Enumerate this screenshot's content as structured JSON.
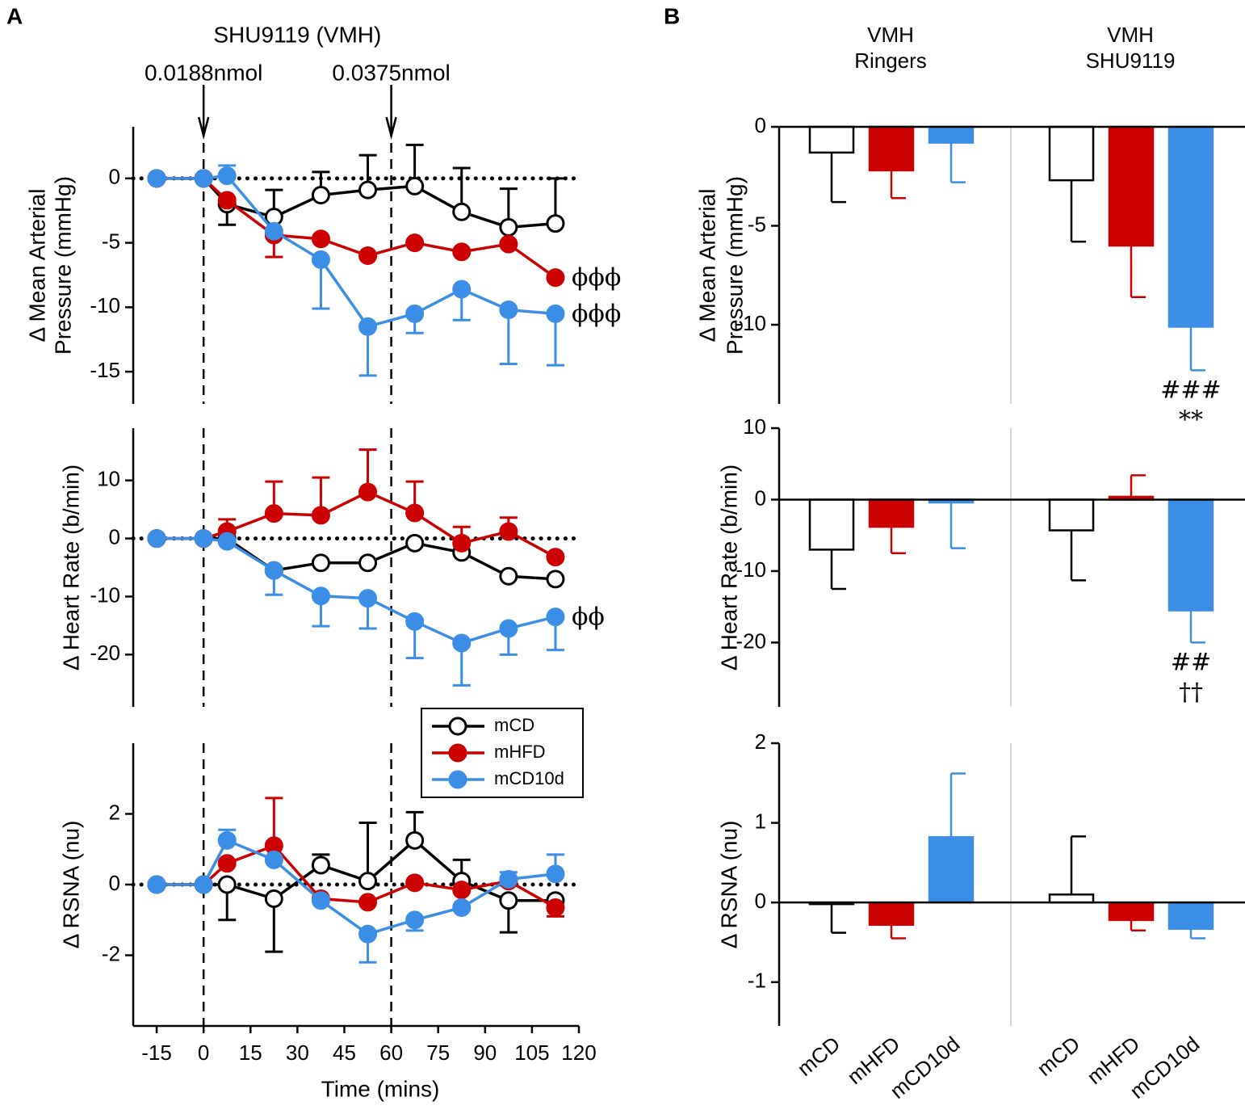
{
  "panel_labels": [
    "A",
    "B"
  ],
  "chart_data": [
    {
      "type": "line",
      "title": "SHU9119 (VMH)",
      "ylabel": [
        "Δ Mean Arterial",
        "Pressure (mmHg)"
      ],
      "x": [
        -15,
        0,
        7.5,
        22.5,
        37.5,
        52.5,
        67.5,
        82.5,
        97.5,
        112.5
      ],
      "xlim": [
        -22.5,
        120
      ],
      "ylim": [
        -17.5,
        4
      ],
      "yticks": [
        -15,
        -10,
        -5,
        0
      ],
      "vlines": [
        0,
        60
      ],
      "vline_labels": [
        "0.0188nmol",
        "0.0375nmol"
      ],
      "hline": 0,
      "series": [
        {
          "color": "#000000",
          "marker": "open",
          "values": [
            0,
            0,
            -2,
            -3,
            -1.3,
            -0.9,
            -0.6,
            -2.6,
            -3.8,
            -3.5
          ],
          "errors": [
            0,
            0,
            1.6,
            2.1,
            1.8,
            2.7,
            3.2,
            3.4,
            3,
            3.5
          ],
          "error_dir": [
            "up",
            "up",
            "down",
            "up",
            "up",
            "up",
            "up",
            "up",
            "up",
            "up"
          ]
        },
        {
          "color": "#cc0000",
          "marker": "filled",
          "values": [
            0,
            0,
            -1.7,
            -4.4,
            -4.7,
            -6,
            -5,
            -5.7,
            -5.1,
            -7.7
          ],
          "errors": [
            0,
            0,
            0,
            1.7,
            0,
            0,
            0,
            0,
            0,
            0
          ],
          "error_dir": [
            "down",
            "down",
            "down",
            "down",
            "down",
            "down",
            "down",
            "down",
            "down",
            "down"
          ],
          "annotation": "ϕϕϕ"
        },
        {
          "color": "#3b8ee6",
          "marker": "filled",
          "values": [
            0,
            0,
            0.2,
            -4.1,
            -6.3,
            -11.5,
            -10.5,
            -8.6,
            -10.2,
            -10.5
          ],
          "errors": [
            0,
            0,
            0.8,
            0,
            3.8,
            3.8,
            1.5,
            2.4,
            4.2,
            4.0
          ],
          "error_dir": [
            "down",
            "down",
            "up",
            "down",
            "down",
            "down",
            "down",
            "down",
            "down",
            "down"
          ],
          "annotation": "ϕϕϕ"
        }
      ]
    },
    {
      "type": "line",
      "ylabel": [
        "Δ Heart Rate (b/min)"
      ],
      "x": [
        -15,
        0,
        7.5,
        22.5,
        37.5,
        52.5,
        67.5,
        82.5,
        97.5,
        112.5
      ],
      "xlim": [
        -22.5,
        120
      ],
      "ylim": [
        -29,
        19
      ],
      "yticks": [
        -20,
        -10,
        0,
        10
      ],
      "vlines": [
        0,
        60
      ],
      "hline": 0,
      "series": [
        {
          "color": "#000000",
          "marker": "open",
          "values": [
            0,
            0,
            0,
            -5.5,
            -4.2,
            -4.2,
            -0.8,
            -2.4,
            -6.5,
            -7
          ],
          "errors": [
            0,
            0,
            0,
            0,
            0,
            0,
            0,
            0,
            0,
            0
          ],
          "error_dir": [
            "up",
            "up",
            "up",
            "up",
            "up",
            "up",
            "up",
            "up",
            "up",
            "up"
          ]
        },
        {
          "color": "#cc0000",
          "marker": "filled",
          "values": [
            0,
            0,
            1.2,
            4.3,
            4,
            8,
            4.4,
            -0.8,
            1.2,
            -3.2
          ],
          "errors": [
            0,
            0,
            2.1,
            5.5,
            6.5,
            7.3,
            5.4,
            2.8,
            2.4,
            0
          ],
          "error_dir": [
            "up",
            "up",
            "up",
            "up",
            "up",
            "up",
            "up",
            "up",
            "up",
            "up"
          ]
        },
        {
          "color": "#3b8ee6",
          "marker": "filled",
          "values": [
            0,
            0,
            -0.5,
            -5.5,
            -9.9,
            -10.3,
            -14.3,
            -18,
            -15.5,
            -13.5
          ],
          "errors": [
            0,
            0,
            0,
            4.2,
            5.2,
            5.2,
            6.3,
            7.3,
            4.5,
            5.7
          ],
          "error_dir": [
            "down",
            "down",
            "down",
            "down",
            "down",
            "down",
            "down",
            "down",
            "down",
            "down"
          ],
          "annotation": "ϕϕ"
        }
      ]
    },
    {
      "type": "line",
      "ylabel": [
        "Δ RSNA (nu)"
      ],
      "xlabel": "Time (mins)",
      "x": [
        -15,
        0,
        7.5,
        22.5,
        37.5,
        52.5,
        67.5,
        82.5,
        97.5,
        112.5
      ],
      "xlim": [
        -22.5,
        120
      ],
      "xticks": [
        -15,
        0,
        15,
        30,
        45,
        60,
        75,
        90,
        105,
        120
      ],
      "ylim": [
        -4,
        4
      ],
      "yticks": [
        -2,
        0,
        2
      ],
      "vlines": [
        0,
        60
      ],
      "hline": 0,
      "legend": "upper right",
      "series": [
        {
          "name": "mCD",
          "color": "#000000",
          "marker": "open",
          "values": [
            0,
            0,
            0,
            -0.4,
            0.55,
            0.1,
            1.25,
            0.1,
            -0.45,
            -0.45
          ],
          "errors": [
            0,
            0,
            1.0,
            1.5,
            0.3,
            1.65,
            0.8,
            0.6,
            0.9,
            0
          ],
          "error_dir": [
            "up",
            "up",
            "down",
            "down",
            "up",
            "up",
            "up",
            "up",
            "down",
            "down"
          ]
        },
        {
          "name": "mHFD",
          "color": "#cc0000",
          "marker": "filled",
          "values": [
            0,
            0,
            0.6,
            1.1,
            -0.4,
            -0.5,
            0.05,
            -0.15,
            0.1,
            -0.65
          ],
          "errors": [
            0,
            0,
            0,
            1.35,
            0,
            0,
            0,
            0,
            0,
            0.25
          ],
          "error_dir": [
            "up",
            "up",
            "up",
            "up",
            "down",
            "down",
            "up",
            "down",
            "up",
            "down"
          ]
        },
        {
          "name": "mCD10d",
          "color": "#3b8ee6",
          "marker": "filled",
          "values": [
            0,
            0,
            1.25,
            0.7,
            -0.45,
            -1.4,
            -1,
            -0.65,
            0.15,
            0.3
          ],
          "errors": [
            0,
            0,
            0.3,
            0,
            0,
            0.8,
            0.3,
            0,
            0.2,
            0.55
          ],
          "error_dir": [
            "up",
            "up",
            "up",
            "up",
            "down",
            "down",
            "down",
            "down",
            "up",
            "up"
          ]
        }
      ]
    },
    {
      "type": "bar",
      "ylabel": [
        "Δ Mean Arterial",
        "Pressure (mmHg)"
      ],
      "groups": [
        [
          "VMH",
          "Ringers"
        ],
        [
          "VMH",
          "SHU9119"
        ]
      ],
      "ylim": [
        -14,
        0
      ],
      "yticks": [
        -10,
        -5,
        0
      ],
      "colors": [
        "#ffffff",
        "#cc0000",
        "#3b8ee6"
      ],
      "edge_colors": [
        "#000000",
        "#cc0000",
        "#3b8ee6"
      ],
      "values": [
        -1.3,
        -2.2,
        -0.8,
        -2.7,
        -6,
        -10.1
      ],
      "errors": [
        2.5,
        1.4,
        2.0,
        3.1,
        2.6,
        2.2
      ],
      "annotations": [
        null,
        null,
        null,
        null,
        null,
        [
          "###",
          "**"
        ]
      ]
    },
    {
      "type": "bar",
      "ylabel": [
        "Δ Heart Rate (b/min)"
      ],
      "ylim": [
        -29,
        10
      ],
      "yticks": [
        -20,
        -10,
        0,
        10
      ],
      "colors": [
        "#ffffff",
        "#cc0000",
        "#3b8ee6"
      ],
      "edge_colors": [
        "#000000",
        "#cc0000",
        "#3b8ee6"
      ],
      "values": [
        -7,
        -3.8,
        -0.4,
        -4.3,
        0.4,
        -15.5
      ],
      "errors": [
        5.5,
        3.7,
        6.4,
        7,
        3.0,
        4.5
      ],
      "annotations": [
        null,
        null,
        null,
        null,
        null,
        [
          "##",
          "††"
        ]
      ]
    },
    {
      "type": "bar",
      "ylabel": [
        "Δ RSNA (nu)"
      ],
      "categories": [
        "mCD",
        "mHFD",
        "mCD10d",
        "mCD",
        "mHFD",
        "mCD10d"
      ],
      "ylim": [
        -1.55,
        2
      ],
      "yticks": [
        -1,
        0,
        1,
        2
      ],
      "colors": [
        "#ffffff",
        "#cc0000",
        "#3b8ee6"
      ],
      "edge_colors": [
        "#000000",
        "#cc0000",
        "#3b8ee6"
      ],
      "values": [
        -0.02,
        -0.28,
        0.82,
        0.1,
        -0.22,
        -0.33
      ],
      "errors": [
        0.36,
        0.17,
        0.8,
        0.73,
        0.13,
        0.12
      ]
    }
  ]
}
